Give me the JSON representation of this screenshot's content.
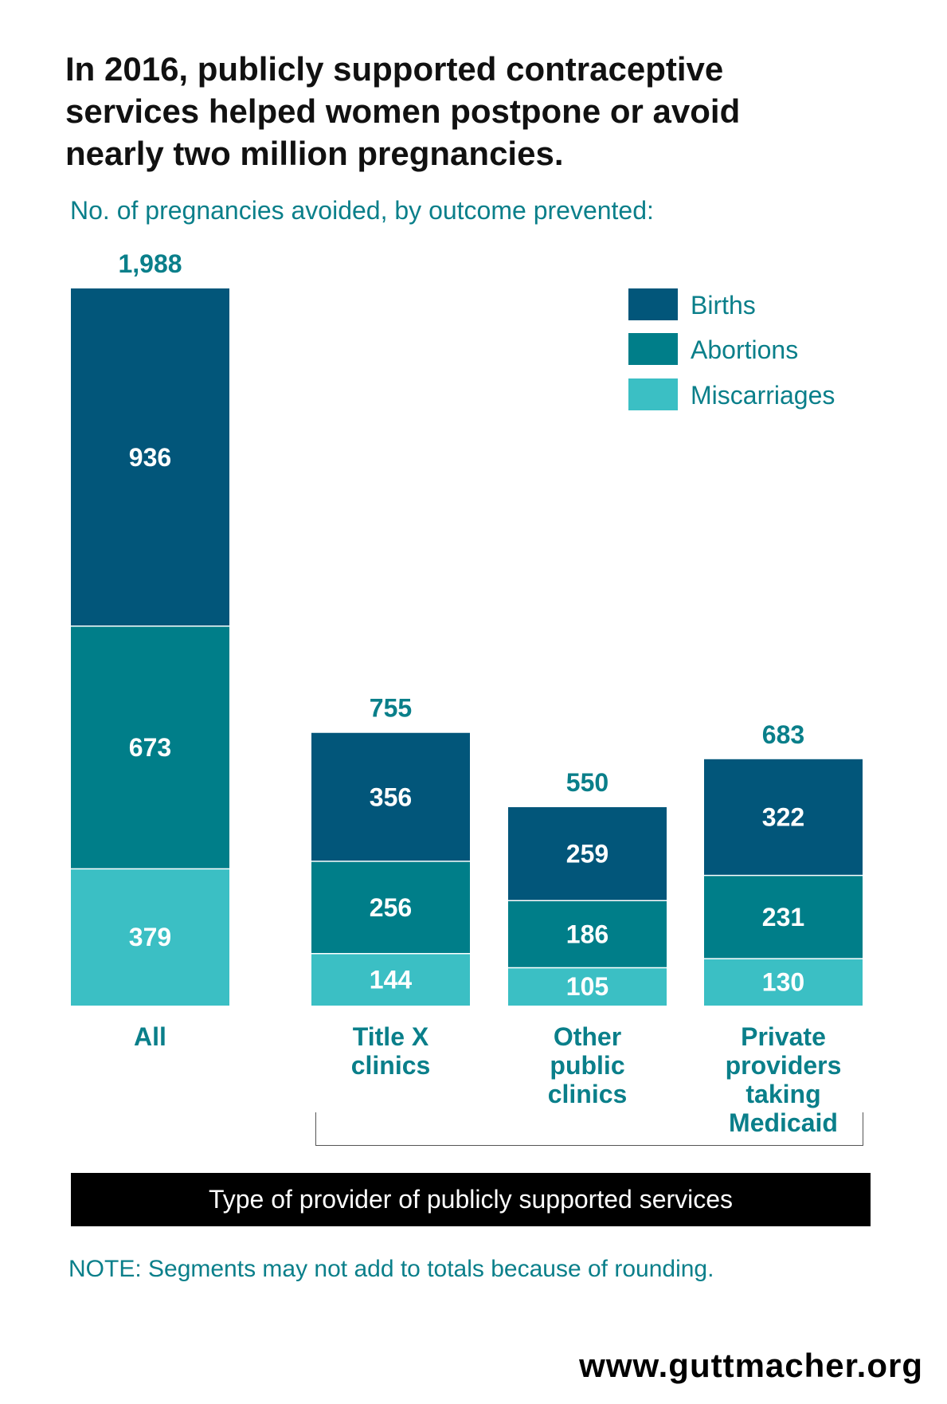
{
  "header": {
    "title": "In 2016, publicly supported contraceptive\nservices helped women postpone or avoid\nnearly two million pregnancies.",
    "subtitle": "No. of pregnancies avoided, by outcome prevented:"
  },
  "footer": {
    "axis_label": "Type of provider of publicly supported services",
    "note": "NOTE: Segments may not add to totals because of rounding.",
    "source": "www.guttmacher.org"
  },
  "chart_data": {
    "type": "bar",
    "stacked": true,
    "categories": [
      "All",
      "Title X\nclinics",
      "Other\npublic\nclinics",
      "Private\nproviders\ntaking\nMedicaid"
    ],
    "totals": [
      1988,
      755,
      550,
      683
    ],
    "series": [
      {
        "name": "Miscarriages",
        "color": "#3bbfc4",
        "values": [
          379,
          144,
          105,
          130
        ]
      },
      {
        "name": "Abortions",
        "color": "#007e89",
        "values": [
          673,
          256,
          186,
          231
        ]
      },
      {
        "name": "Births",
        "color": "#02567a",
        "values": [
          936,
          356,
          259,
          322
        ]
      }
    ],
    "legend_order": [
      "Births",
      "Abortions",
      "Miscarriages"
    ],
    "legend_position": "top-right",
    "label_color": "#0a7f8a",
    "ylim": [
      0,
      1988
    ],
    "grid": false
  }
}
